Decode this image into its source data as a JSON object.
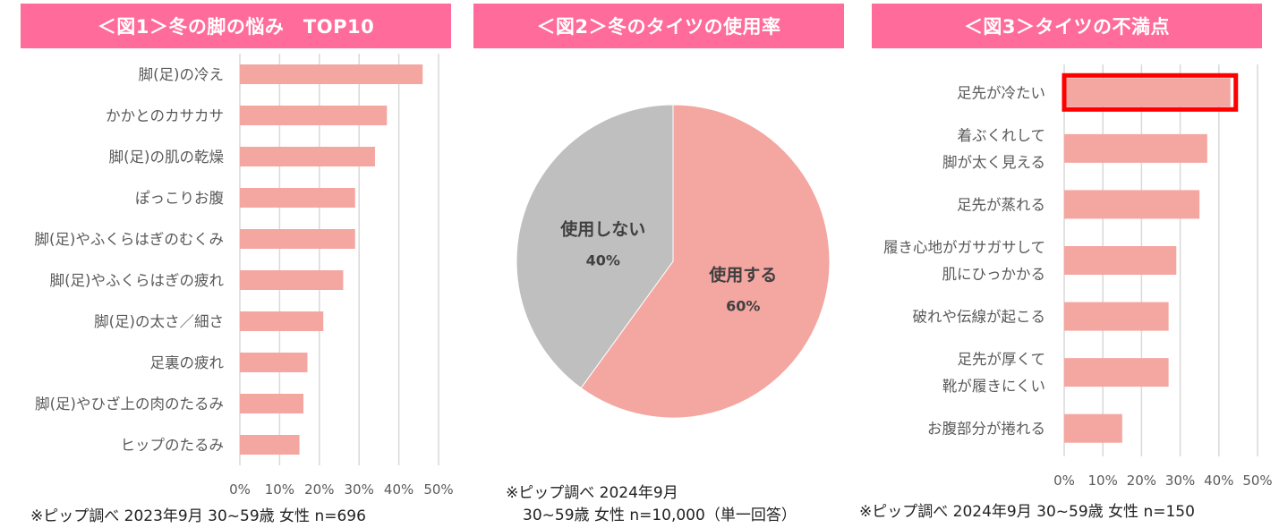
{
  "titles": {
    "fig1": "＜図1＞冬の脚の悩み　TOP10",
    "fig2": "＜図2＞冬のタイツの使用率",
    "fig3": "＜図3＞タイツの不満点"
  },
  "notes": {
    "fig1": "※ピップ調べ 2023年9月 30~59歳 女性 n=696",
    "fig2_line1": "※ピップ調べ 2024年9月",
    "fig2_line2": "30~59歳 女性 n=10,000（単一回答）",
    "fig3": "※ピップ調べ 2024年9月 30~59歳 女性 n=150"
  },
  "colors": {
    "title_bg": "#ff6b9a",
    "bar": "#f4a6a1",
    "pie_grey": "#bfbfbf",
    "highlight": "#ff0000"
  },
  "chart_data": [
    {
      "type": "bar",
      "orientation": "horizontal",
      "categories": [
        "脚(足)の冷え",
        "かかとのカサカサ",
        "脚(足)の肌の乾燥",
        "ぽっこりお腹",
        "脚(足)やふくらはぎのむくみ",
        "脚(足)やふくらはぎの疲れ",
        "脚(足)の太さ／細さ",
        "足裏の疲れ",
        "脚(足)やひざ上の肉のたるみ",
        "ヒップのたるみ"
      ],
      "values": [
        46,
        37,
        34,
        29,
        29,
        26,
        21,
        17,
        16,
        15
      ],
      "xlim": [
        0,
        50
      ],
      "xticks": [
        "0%",
        "10%",
        "20%",
        "30%",
        "40%",
        "50%"
      ],
      "grid": "vertical"
    },
    {
      "type": "pie",
      "slices": [
        {
          "label": "使用する",
          "value": 60,
          "value_label": "60%"
        },
        {
          "label": "使用しない",
          "value": 40,
          "value_label": "40%"
        }
      ]
    },
    {
      "type": "bar",
      "orientation": "horizontal",
      "categories": [
        [
          "足先が冷たい"
        ],
        [
          "着ぶくれして",
          "脚が太く見える"
        ],
        [
          "足先が蒸れる"
        ],
        [
          "履き心地がガサガサして",
          "肌にひっかかる"
        ],
        [
          "破れや伝線が起こる"
        ],
        [
          "足先が厚くて",
          "靴が履きにくい"
        ],
        [
          "お腹部分が捲れる"
        ]
      ],
      "values": [
        43,
        37,
        35,
        29,
        27,
        27,
        15
      ],
      "xlim": [
        0,
        50
      ],
      "xticks": [
        "0%",
        "10%",
        "20%",
        "30%",
        "40%",
        "50%"
      ],
      "grid": "vertical",
      "highlighted": "足先が冷たい"
    }
  ]
}
